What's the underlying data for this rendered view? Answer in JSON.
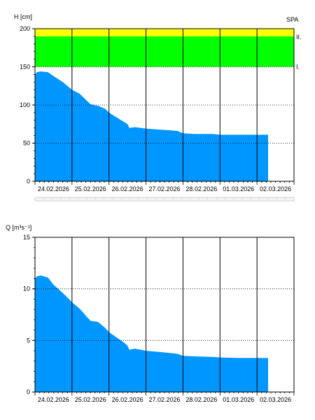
{
  "chart_data": [
    {
      "type": "area",
      "ylabel": "H [cm]",
      "corner_label": "SPA",
      "ylim": [
        0,
        200
      ],
      "y_ticks": [
        0,
        50,
        100,
        150,
        200
      ],
      "x_ticks": [
        "24.02.2026",
        "25.02.2026",
        "26.02.2026",
        "27.02.2026",
        "28.02.2026",
        "01.03.2026",
        "02.03.2026"
      ],
      "x_range_days": [
        0,
        7
      ],
      "colors": {
        "area": "#0096ff",
        "band_1": "#00ff00",
        "band_2": "#ffff00"
      },
      "bands": [
        {
          "label": "I.",
          "from": 150,
          "to": 190,
          "color": "#00ff00"
        },
        {
          "label": "II.",
          "from": 190,
          "to": 200,
          "color": "#ffff00"
        }
      ],
      "series": [
        {
          "x": [
            0,
            0.05,
            0.15,
            0.35,
            0.5,
            0.75,
            0.95,
            1.0,
            1.2,
            1.35,
            1.5,
            1.7,
            1.9,
            2.0,
            2.2,
            2.4,
            2.5,
            2.55,
            2.7,
            3.0,
            3.3,
            3.6,
            3.85,
            4.0,
            4.3,
            4.8,
            5.0,
            5.5,
            6.0,
            6.3
          ],
          "y": [
            140,
            143,
            144,
            143,
            138,
            130,
            122,
            120,
            115,
            108,
            101,
            99,
            95,
            90,
            84,
            78,
            75,
            70,
            71,
            69,
            68,
            67,
            66,
            63,
            62,
            62,
            61,
            61,
            61,
            61
          ]
        }
      ]
    },
    {
      "type": "area",
      "ylabel": "Q [m³s⁻¹]",
      "ylim": [
        0,
        15
      ],
      "y_ticks": [
        0,
        5,
        10,
        15
      ],
      "x_ticks": [
        "24.02.2026",
        "25.02.2026",
        "26.02.2026",
        "27.02.2026",
        "28.02.2026",
        "01.03.2026",
        "02.03.2026"
      ],
      "x_range_days": [
        0,
        7
      ],
      "colors": {
        "area": "#0096ff"
      },
      "series": [
        {
          "x": [
            0,
            0.05,
            0.15,
            0.35,
            0.5,
            0.75,
            0.95,
            1.0,
            1.2,
            1.35,
            1.5,
            1.7,
            1.9,
            2.0,
            2.2,
            2.4,
            2.5,
            2.55,
            2.7,
            3.0,
            3.3,
            3.6,
            3.85,
            4.0,
            4.3,
            4.8,
            5.0,
            5.5,
            6.0,
            6.3
          ],
          "y": [
            11.0,
            11.2,
            11.3,
            11.1,
            10.4,
            9.6,
            8.9,
            8.7,
            8.1,
            7.5,
            6.9,
            6.8,
            6.2,
            5.8,
            5.3,
            4.8,
            4.5,
            4.1,
            4.2,
            4.0,
            3.9,
            3.8,
            3.7,
            3.5,
            3.45,
            3.4,
            3.35,
            3.3,
            3.3,
            3.3
          ]
        }
      ]
    }
  ]
}
